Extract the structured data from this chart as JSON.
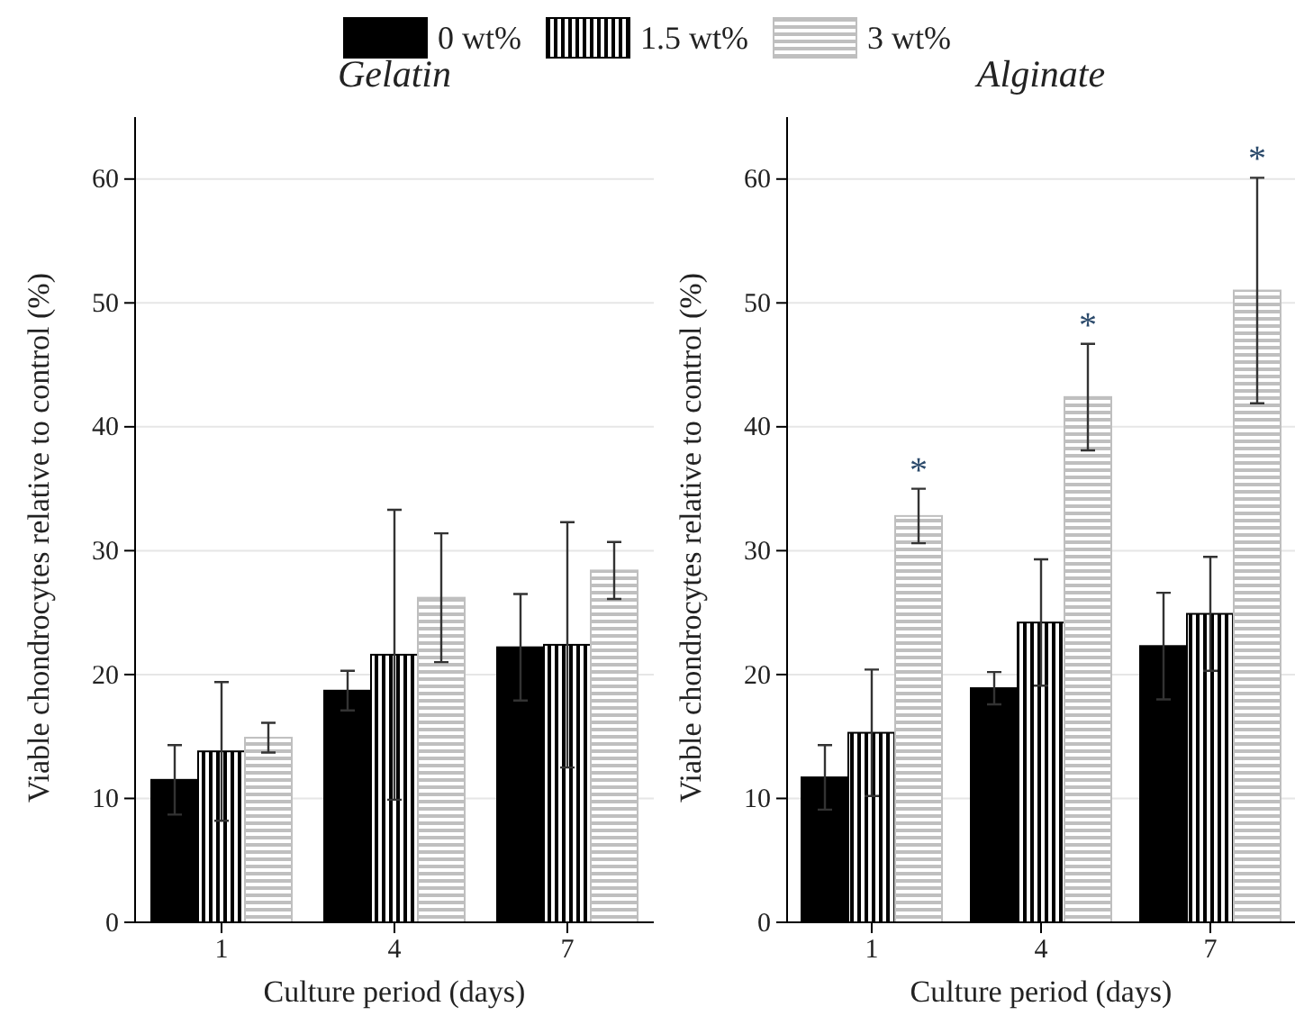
{
  "chart_data": [
    {
      "type": "bar",
      "title": "Gelatin",
      "xlabel": "Culture period (days)",
      "ylabel": "Viable chondrocytes relative to control (%)",
      "categories": [
        "1",
        "4",
        "7"
      ],
      "ylim": [
        0,
        65
      ],
      "yticks": [
        0,
        10,
        20,
        30,
        40,
        50,
        60
      ],
      "grid": "y",
      "legend": "top",
      "series": [
        {
          "name": "0 wt%",
          "color": "#000000",
          "values": [
            11.5,
            18.7,
            22.2
          ],
          "errors": [
            2.8,
            1.6,
            4.3
          ]
        },
        {
          "name": "1.5 wt%",
          "color": "#000000",
          "values": [
            13.8,
            21.6,
            22.4
          ],
          "errors": [
            5.6,
            11.7,
            9.9
          ]
        },
        {
          "name": "3 wt%",
          "color": "#bfbfbf",
          "values": [
            14.9,
            26.2,
            28.4
          ],
          "errors": [
            1.2,
            5.2,
            2.3
          ]
        }
      ]
    },
    {
      "type": "bar",
      "title": "Alginate",
      "xlabel": "Culture period (days)",
      "ylabel": "Viable chondrocytes relative to control (%)",
      "categories": [
        "1",
        "4",
        "7"
      ],
      "ylim": [
        0,
        65
      ],
      "yticks": [
        0,
        10,
        20,
        30,
        40,
        50,
        60
      ],
      "grid": "y",
      "series": [
        {
          "color": "#000000",
          "values": [
            11.7,
            18.9,
            22.3
          ],
          "errors": [
            2.6,
            1.3,
            4.3
          ]
        },
        {
          "color": "#000000",
          "values": [
            15.3,
            24.2,
            24.9
          ],
          "errors": [
            5.1,
            5.1,
            4.6
          ]
        },
        {
          "color": "#bfbfbf",
          "values": [
            32.8,
            42.4,
            51.0
          ],
          "errors": [
            2.2,
            4.3,
            9.1
          ]
        }
      ],
      "annotations": [
        "*",
        "*",
        "*"
      ]
    }
  ]
}
